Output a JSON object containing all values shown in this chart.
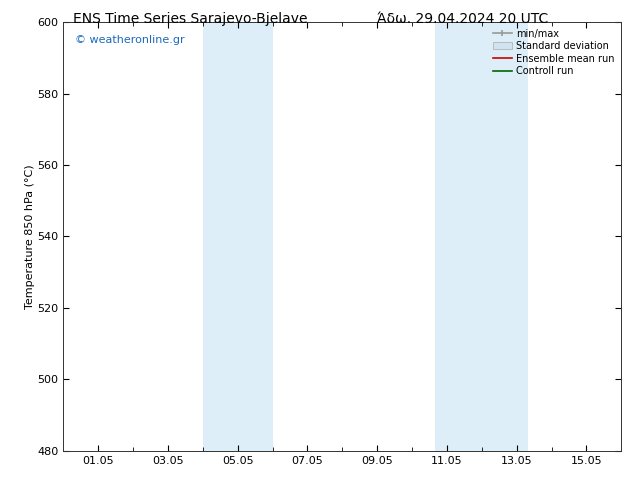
{
  "title": "ENS Time Series Sarajevo-Bjelave",
  "title_right": "Άδω. 29.04.2024 20 UTC",
  "ylabel": "Temperature 850 hPa (°C)",
  "ylim": [
    480,
    600
  ],
  "yticks": [
    480,
    500,
    520,
    540,
    560,
    580,
    600
  ],
  "xtick_positions": [
    1,
    3,
    5,
    7,
    9,
    11,
    13,
    15
  ],
  "xtick_labels": [
    "01.05",
    "03.05",
    "05.05",
    "07.05",
    "09.05",
    "11.05",
    "13.05",
    "15.05"
  ],
  "xlim": [
    0.0,
    16.0
  ],
  "minor_xtick_positions": [
    2,
    4,
    6,
    8,
    10,
    12,
    14
  ],
  "shaded_bands": [
    {
      "x_start": 4.0,
      "x_end": 6.0,
      "color": "#ddeef8"
    },
    {
      "x_start": 10.67,
      "x_end": 13.33,
      "color": "#ddeef8"
    }
  ],
  "watermark": "© weatheronline.gr",
  "watermark_color": "#1a6abf",
  "legend_entries": [
    {
      "label": "min/max",
      "color": "#999999",
      "linestyle": "-",
      "type": "line_with_caps"
    },
    {
      "label": "Standard deviation",
      "color": "#d0e4f0",
      "linestyle": "-",
      "type": "patch"
    },
    {
      "label": "Ensemble mean run",
      "color": "#cc0000",
      "linestyle": "-",
      "type": "line"
    },
    {
      "label": "Controll run",
      "color": "#006600",
      "linestyle": "-",
      "type": "line"
    }
  ],
  "background_color": "#ffffff",
  "spine_color": "#333333",
  "font_size_title": 10,
  "font_size_axis": 8,
  "font_size_ticks": 8,
  "font_size_watermark": 8,
  "font_size_legend": 7
}
